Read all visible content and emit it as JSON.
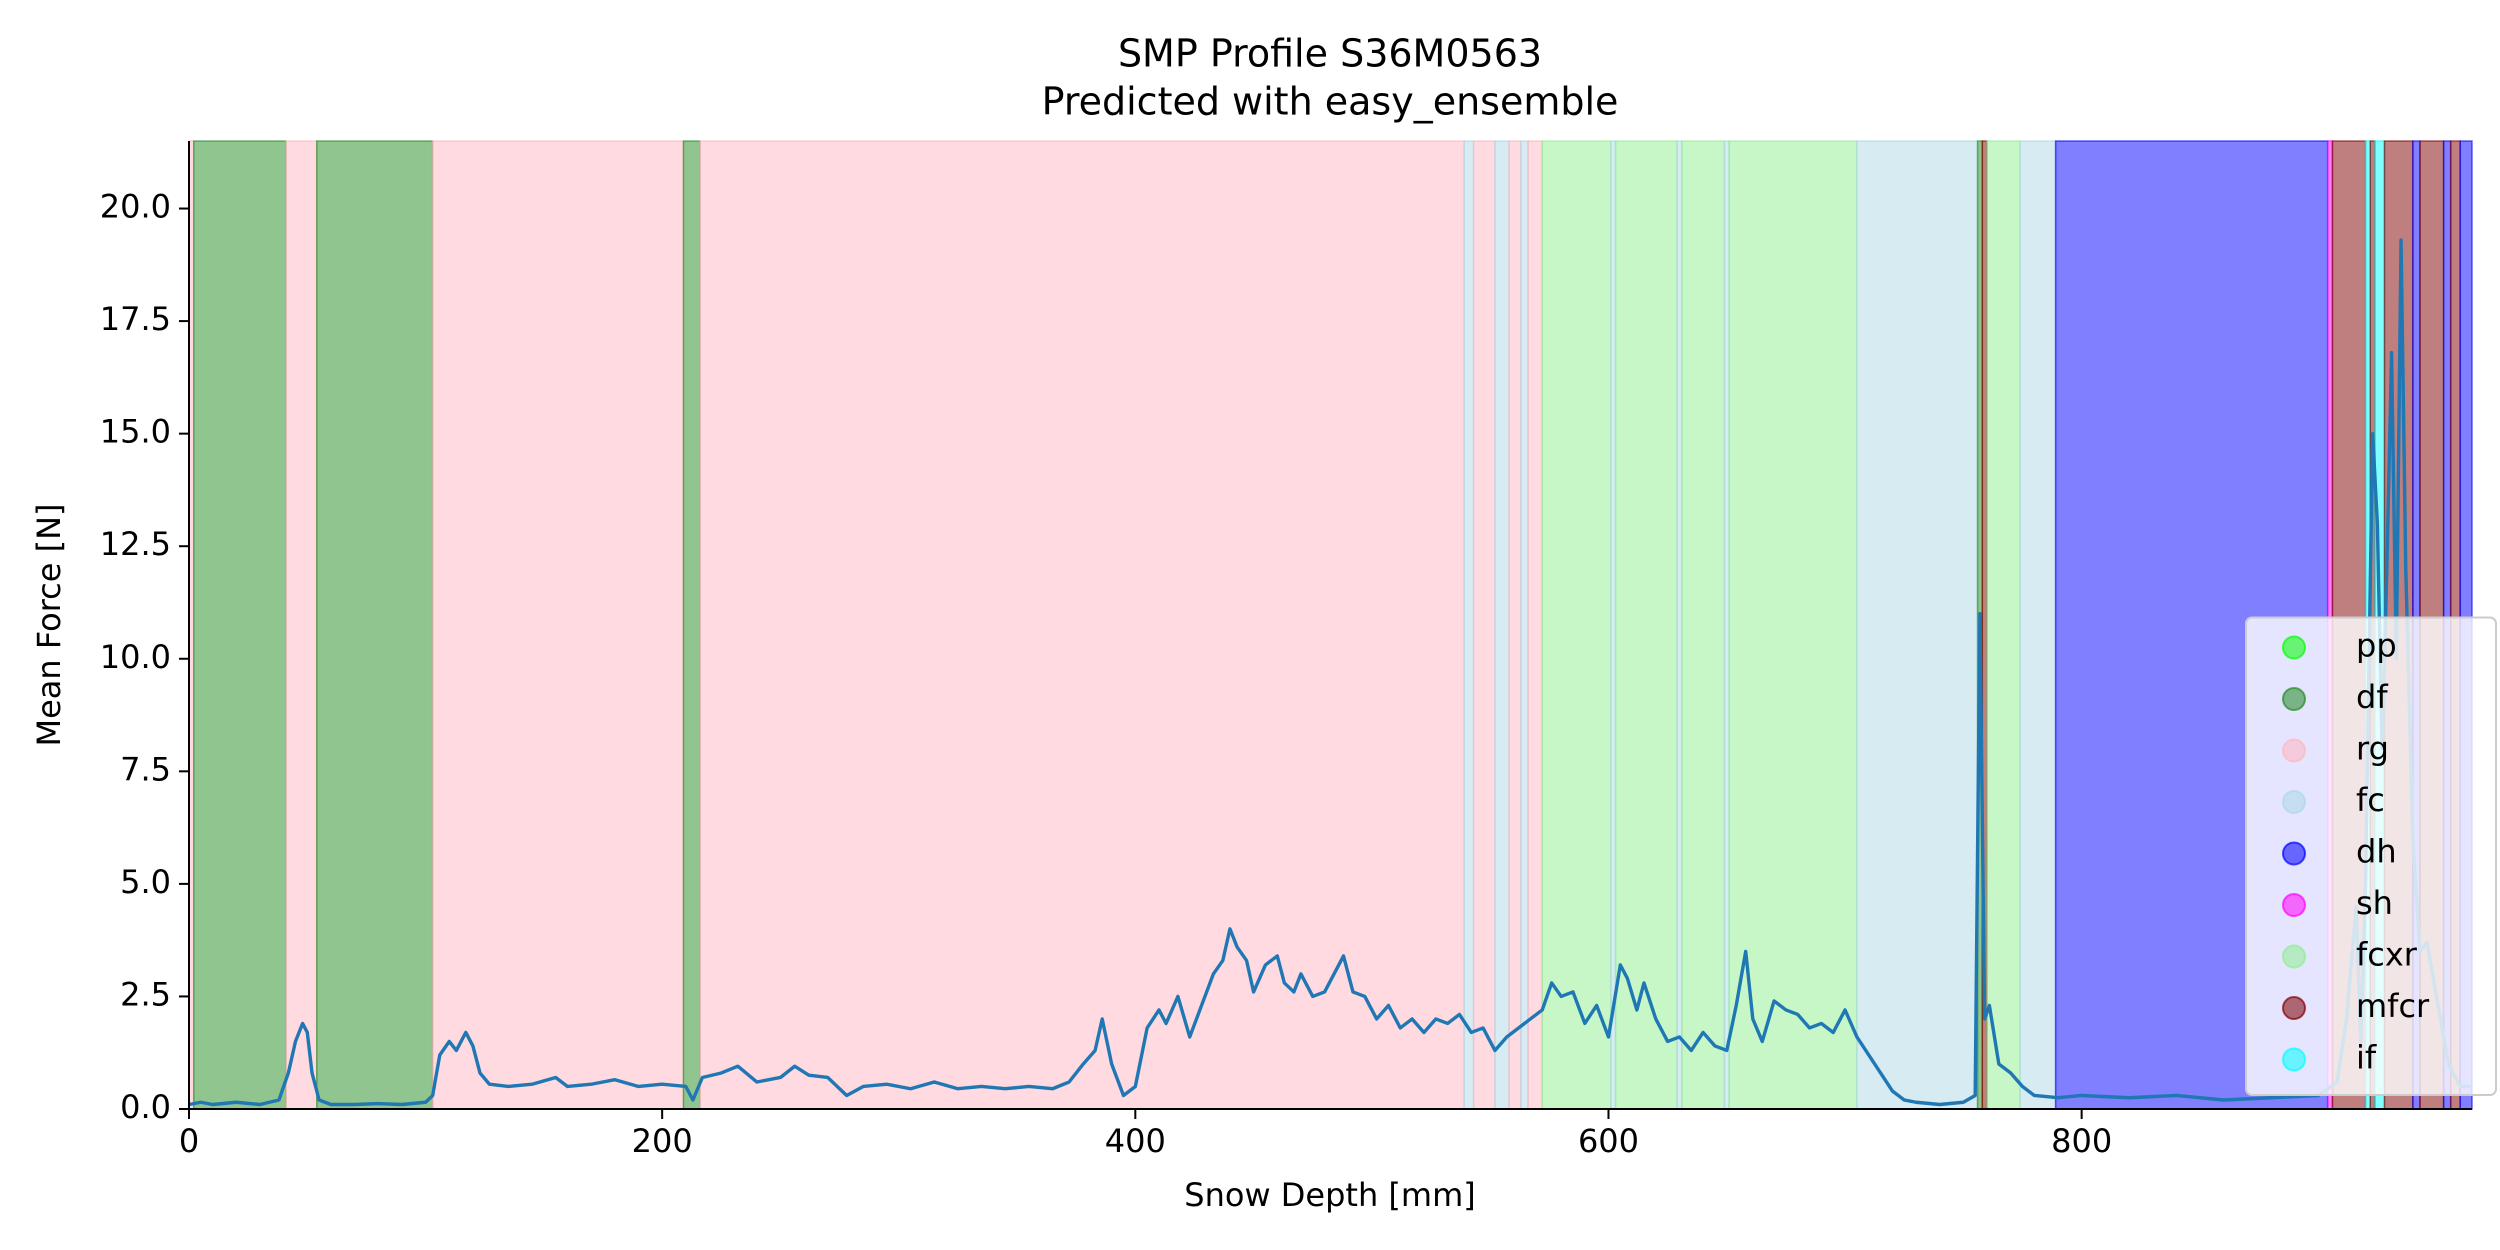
{
  "chart_data": {
    "type": "line",
    "title": "SMP Profile S36M0563",
    "subtitle": "Predicted with easy_ensemble",
    "x_label": "Snow Depth [mm]",
    "y_label": "Mean Force [N]",
    "xlim": [
      0,
      965
    ],
    "ylim": [
      0,
      21.5
    ],
    "xticks": [
      0,
      200,
      400,
      600,
      800
    ],
    "yticks": [
      {
        "value": 0,
        "label": "0.0"
      },
      2.5,
      {
        "value": 5,
        "label": "5.0"
      },
      7.5,
      {
        "value": 10,
        "label": "10.0"
      },
      12.5,
      {
        "value": 15,
        "label": "15.0"
      },
      17.5,
      {
        "value": 20,
        "label": "20.0"
      }
    ],
    "color": "#1f77b4",
    "span_opacity": 0.5,
    "legend_position": "lower right",
    "classes": [
      {
        "name": "pp",
        "color": "#00ff00"
      },
      {
        "name": "df",
        "color": "#228b22"
      },
      {
        "name": "rg",
        "color": "#ffb6c1"
      },
      {
        "name": "fc",
        "color": "#add8e6"
      },
      {
        "name": "dh",
        "color": "#0000ff"
      },
      {
        "name": "sh",
        "color": "#ff00ff"
      },
      {
        "name": "fcxr",
        "color": "#90ee90"
      },
      {
        "name": "mfcr",
        "color": "#800000"
      },
      {
        "name": "if",
        "color": "#00ffff"
      }
    ],
    "spans": [
      {
        "x": [
          0,
          2
        ],
        "class": "rg"
      },
      {
        "x": [
          2,
          41
        ],
        "class": "df"
      },
      {
        "x": [
          41,
          54
        ],
        "class": "rg"
      },
      {
        "x": [
          54,
          103
        ],
        "class": "df"
      },
      {
        "x": [
          103,
          209
        ],
        "class": "rg"
      },
      {
        "x": [
          209,
          216
        ],
        "class": "df"
      },
      {
        "x": [
          216,
          539
        ],
        "class": "rg"
      },
      {
        "x": [
          539,
          543
        ],
        "class": "fc"
      },
      {
        "x": [
          543,
          552
        ],
        "class": "rg"
      },
      {
        "x": [
          552,
          558
        ],
        "class": "fc"
      },
      {
        "x": [
          558,
          563
        ],
        "class": "rg"
      },
      {
        "x": [
          563,
          566
        ],
        "class": "fc"
      },
      {
        "x": [
          566,
          572
        ],
        "class": "rg"
      },
      {
        "x": [
          572,
          601
        ],
        "class": "fcxr"
      },
      {
        "x": [
          601,
          603
        ],
        "class": "fc"
      },
      {
        "x": [
          603,
          629
        ],
        "class": "fcxr"
      },
      {
        "x": [
          629,
          631
        ],
        "class": "fc"
      },
      {
        "x": [
          631,
          649
        ],
        "class": "fcxr"
      },
      {
        "x": [
          649,
          651
        ],
        "class": "fc"
      },
      {
        "x": [
          651,
          705
        ],
        "class": "fcxr"
      },
      {
        "x": [
          705,
          756
        ],
        "class": "fc"
      },
      {
        "x": [
          756,
          758
        ],
        "class": "df"
      },
      {
        "x": [
          758,
          760
        ],
        "class": "mfcr"
      },
      {
        "x": [
          760,
          774
        ],
        "class": "fcxr"
      },
      {
        "x": [
          774,
          789
        ],
        "class": "fc"
      },
      {
        "x": [
          789,
          904
        ],
        "class": "dh"
      },
      {
        "x": [
          904,
          906
        ],
        "class": "sh"
      },
      {
        "x": [
          906,
          920
        ],
        "class": "mfcr"
      },
      {
        "x": [
          920,
          922
        ],
        "class": "if"
      },
      {
        "x": [
          922,
          924
        ],
        "class": "mfcr"
      },
      {
        "x": [
          924,
          928
        ],
        "class": "if"
      },
      {
        "x": [
          928,
          940
        ],
        "class": "mfcr"
      },
      {
        "x": [
          940,
          943
        ],
        "class": "dh"
      },
      {
        "x": [
          943,
          953
        ],
        "class": "mfcr"
      },
      {
        "x": [
          953,
          956
        ],
        "class": "dh"
      },
      {
        "x": [
          956,
          960
        ],
        "class": "mfcr"
      },
      {
        "x": [
          960,
          965
        ],
        "class": "dh"
      }
    ],
    "x": [
      0,
      5,
      10,
      20,
      30,
      38,
      42,
      45,
      48,
      50,
      52,
      55,
      60,
      70,
      80,
      90,
      100,
      103,
      106,
      110,
      113,
      117,
      120,
      123,
      127,
      135,
      145,
      155,
      160,
      170,
      180,
      190,
      200,
      210,
      213,
      217,
      225,
      232,
      240,
      250,
      256,
      262,
      270,
      278,
      285,
      295,
      305,
      315,
      325,
      335,
      345,
      355,
      365,
      372,
      378,
      383,
      386,
      390,
      395,
      400,
      405,
      410,
      413,
      418,
      423,
      428,
      433,
      437,
      440,
      443,
      447,
      450,
      455,
      460,
      463,
      467,
      470,
      475,
      480,
      485,
      488,
      492,
      497,
      502,
      507,
      512,
      517,
      522,
      527,
      532,
      537,
      542,
      547,
      552,
      557,
      562,
      567,
      572,
      576,
      580,
      585,
      590,
      595,
      600,
      605,
      608,
      612,
      615,
      620,
      625,
      630,
      635,
      640,
      645,
      650,
      654,
      658,
      661,
      665,
      670,
      675,
      680,
      685,
      690,
      695,
      700,
      705,
      710,
      715,
      720,
      725,
      730,
      740,
      750,
      755,
      757,
      759,
      761,
      765,
      770,
      775,
      780,
      790,
      800,
      820,
      840,
      860,
      880,
      900,
      908,
      912,
      916,
      918,
      920,
      923,
      925,
      927,
      929,
      931,
      933,
      935,
      937,
      940,
      943,
      946,
      950,
      955,
      960,
      965
    ],
    "values": [
      0.1,
      0.15,
      0.1,
      0.15,
      0.1,
      0.2,
      0.8,
      1.5,
      1.9,
      1.7,
      0.8,
      0.2,
      0.1,
      0.1,
      0.12,
      0.1,
      0.15,
      0.3,
      1.2,
      1.5,
      1.3,
      1.7,
      1.4,
      0.8,
      0.55,
      0.5,
      0.55,
      0.7,
      0.5,
      0.55,
      0.65,
      0.5,
      0.55,
      0.5,
      0.2,
      0.7,
      0.8,
      0.95,
      0.6,
      0.7,
      0.95,
      0.75,
      0.7,
      0.3,
      0.5,
      0.55,
      0.45,
      0.6,
      0.45,
      0.5,
      0.45,
      0.5,
      0.45,
      0.6,
      1.0,
      1.3,
      2.0,
      1.0,
      0.3,
      0.5,
      1.8,
      2.2,
      1.9,
      2.5,
      1.6,
      2.3,
      3.0,
      3.3,
      4.0,
      3.6,
      3.3,
      2.6,
      3.2,
      3.4,
      2.8,
      2.6,
      3.0,
      2.5,
      2.6,
      3.1,
      3.4,
      2.6,
      2.5,
      2.0,
      2.3,
      1.8,
      2.0,
      1.7,
      2.0,
      1.9,
      2.1,
      1.7,
      1.8,
      1.3,
      1.6,
      1.8,
      2.0,
      2.2,
      2.8,
      2.5,
      2.6,
      1.9,
      2.3,
      1.6,
      3.2,
      2.9,
      2.2,
      2.8,
      2.0,
      1.5,
      1.6,
      1.3,
      1.7,
      1.4,
      1.3,
      2.3,
      3.5,
      2.0,
      1.5,
      2.4,
      2.2,
      2.1,
      1.8,
      1.9,
      1.7,
      2.2,
      1.6,
      1.2,
      0.8,
      0.4,
      0.2,
      0.15,
      0.1,
      0.15,
      0.3,
      11.0,
      2.0,
      2.3,
      1.0,
      0.8,
      0.5,
      0.3,
      0.25,
      0.3,
      0.25,
      0.3,
      0.2,
      0.25,
      0.3,
      0.6,
      2.0,
      4.5,
      1.5,
      5.0,
      15.0,
      13.0,
      8.0,
      12.0,
      16.8,
      10.0,
      19.3,
      12.0,
      6.0,
      3.5,
      3.7,
      2.5,
      1.0,
      0.5,
      0.5
    ]
  }
}
